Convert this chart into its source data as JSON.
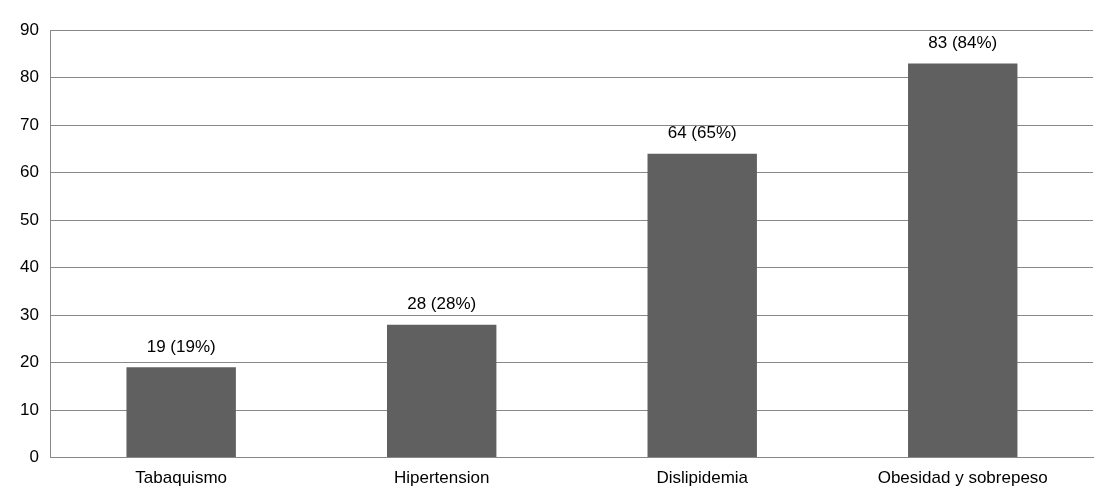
{
  "chart_data": {
    "type": "bar",
    "categories": [
      "Tabaquismo",
      "Hipertension",
      "Dislipidemia",
      "Obesidad y sobrepeso"
    ],
    "values": [
      19,
      28,
      64,
      83
    ],
    "color": "#606060",
    "value_labels": [
      "19 (19%)",
      "28 (28%)",
      "64 (65%)",
      "83 (84%)"
    ],
    "ylim": [
      0,
      90
    ],
    "yticks": [
      0,
      10,
      20,
      30,
      40,
      50,
      60,
      70,
      80,
      90
    ],
    "grid": "y",
    "legend": false
  }
}
